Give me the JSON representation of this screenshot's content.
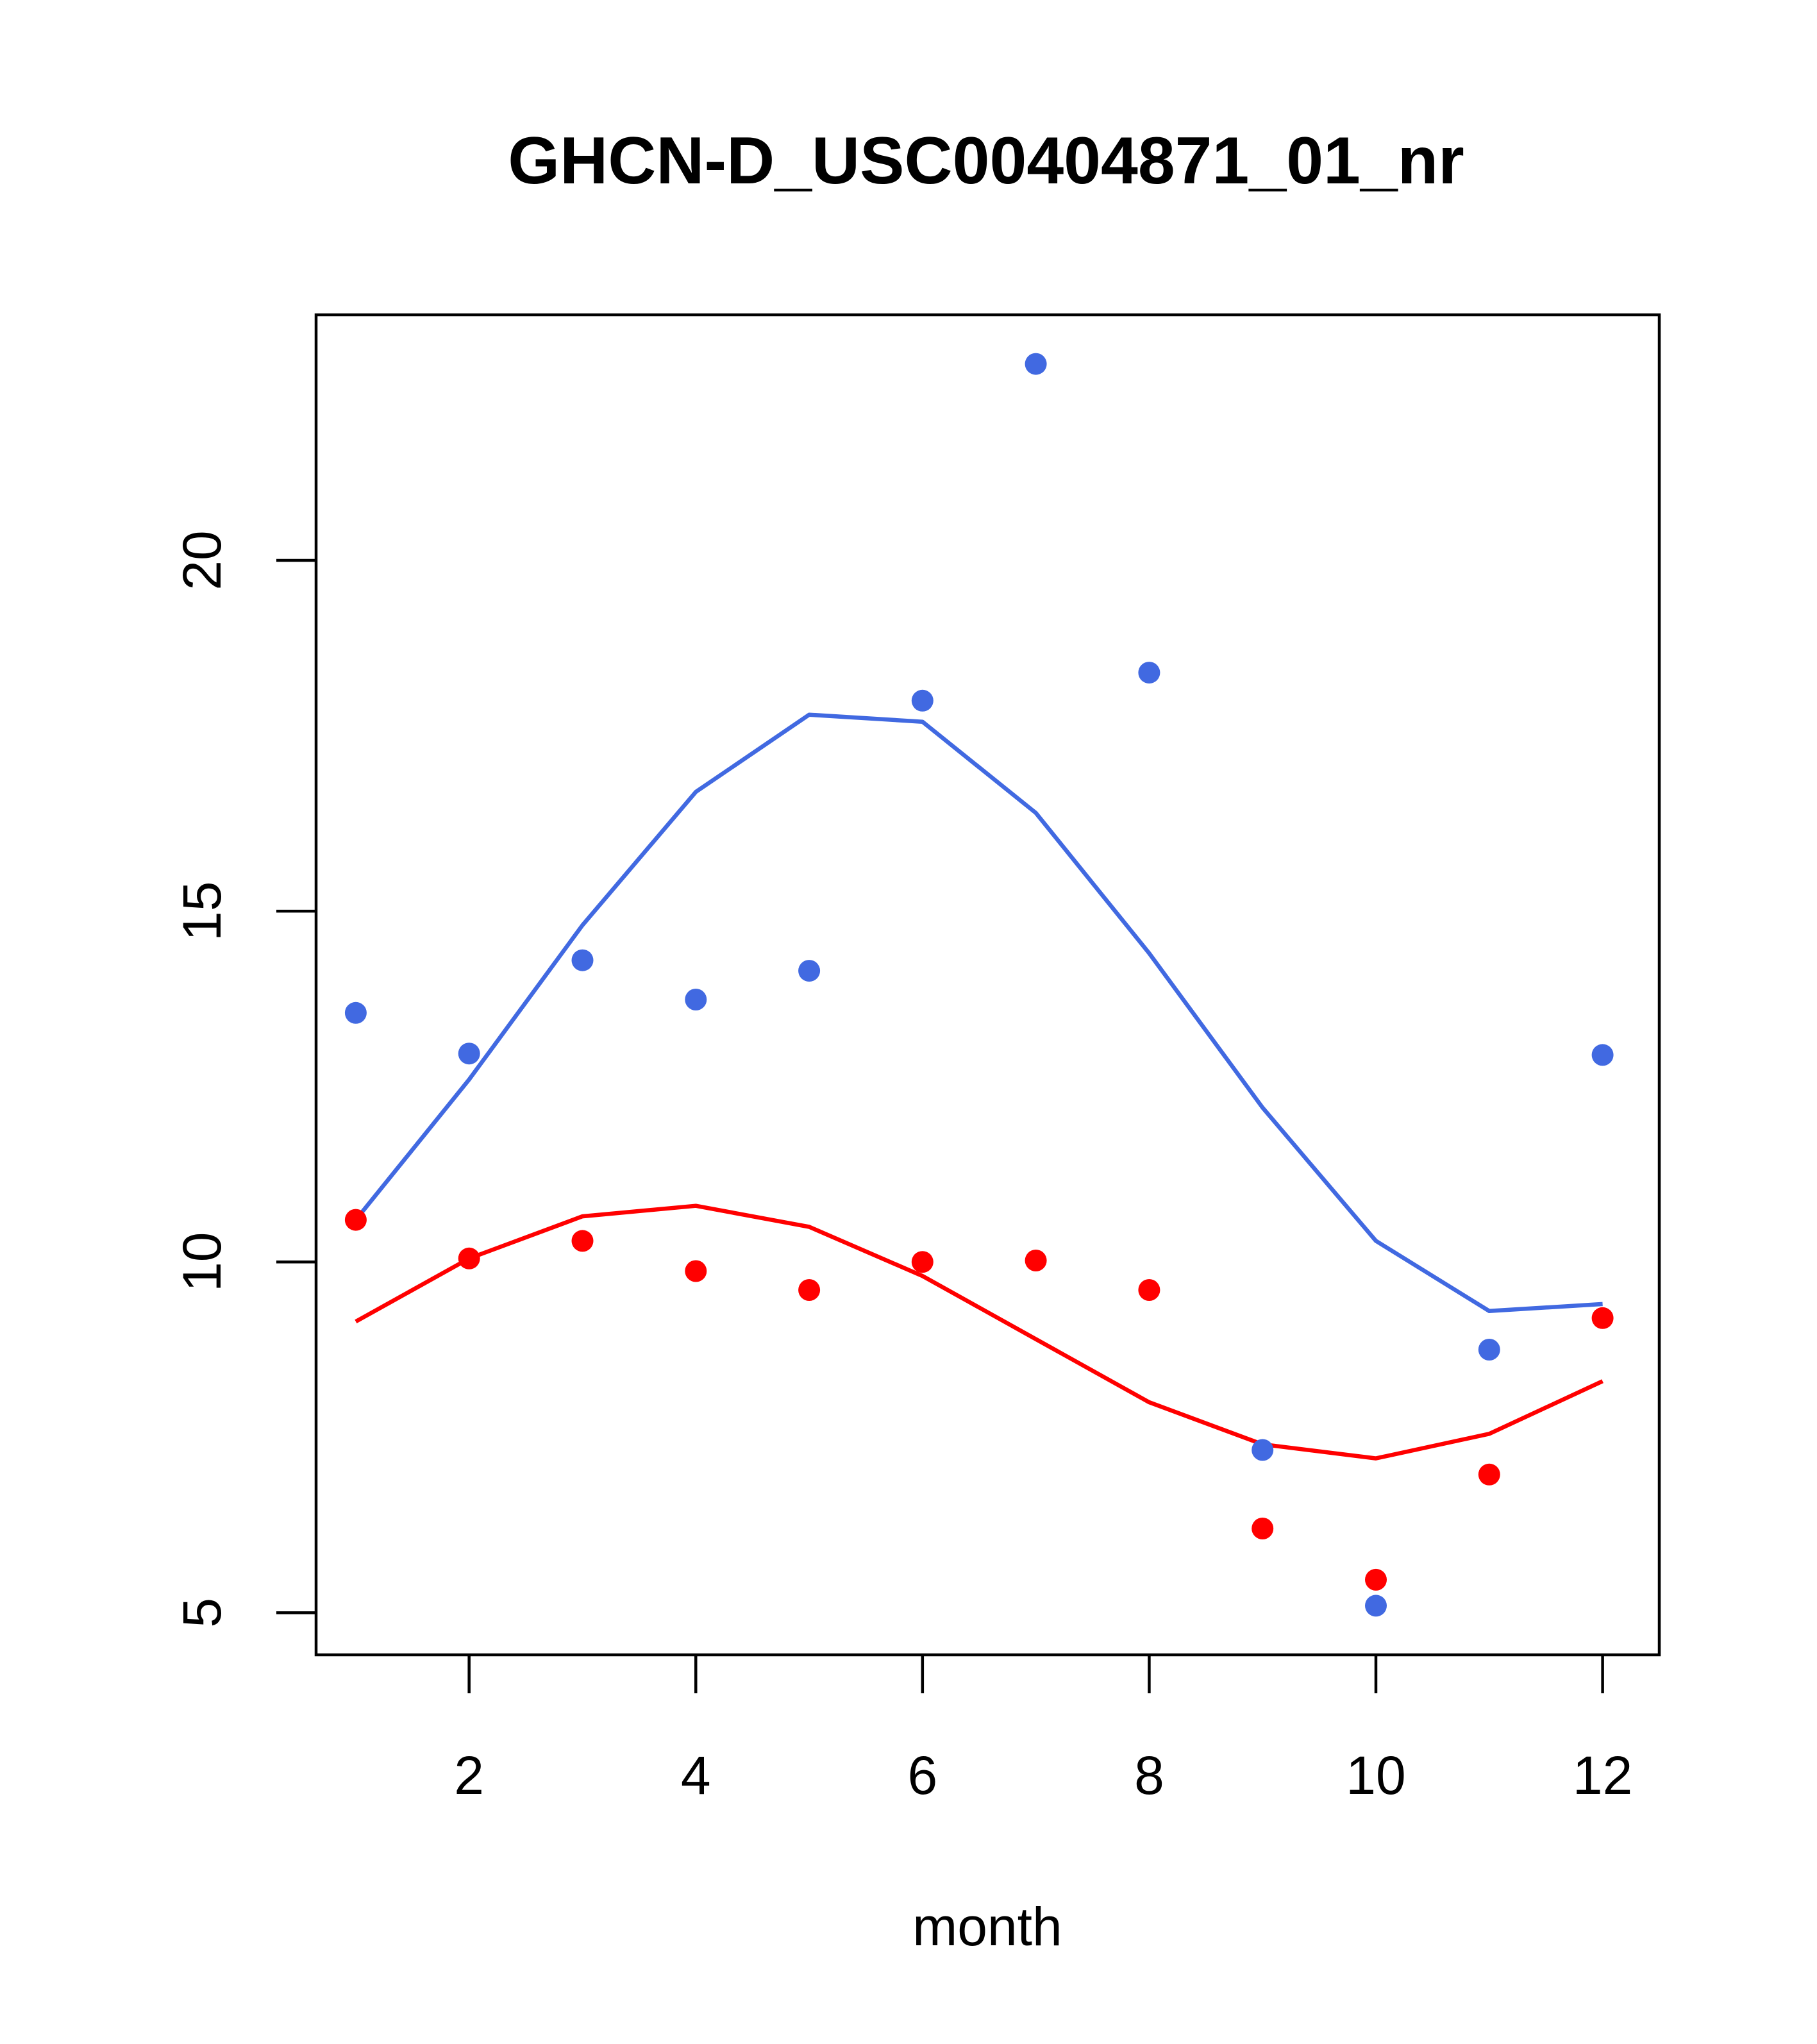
{
  "chart_data": {
    "type": "scatter",
    "title": "GHCN-D_USC00404871_01_nr",
    "xlabel": "month",
    "ylabel": "",
    "xlim": [
      0.65,
      12.5
    ],
    "ylim": [
      4.4,
      23.5
    ],
    "xticks": [
      2,
      4,
      6,
      8,
      10,
      12
    ],
    "yticks": [
      5,
      10,
      15,
      20
    ],
    "grid": false,
    "series": [
      {
        "color": "#4169e1",
        "points": {
          "x": [
            1,
            2,
            3,
            4,
            5,
            6,
            7,
            8,
            9,
            10,
            11,
            12
          ],
          "y": [
            13.55,
            12.97,
            14.3,
            13.74,
            14.15,
            18.0,
            22.8,
            18.4,
            7.32,
            5.1,
            8.75,
            12.95
          ]
        },
        "line": {
          "x": [
            1,
            2,
            3,
            4,
            5,
            6,
            7,
            8,
            9,
            10,
            11,
            12
          ],
          "y": [
            10.6,
            12.6,
            14.8,
            16.7,
            17.8,
            17.7,
            16.4,
            14.4,
            12.2,
            10.3,
            9.3,
            9.4
          ]
        }
      },
      {
        "color": "#ff0000",
        "points": {
          "x": [
            1,
            2,
            3,
            4,
            5,
            6,
            7,
            8,
            9,
            10,
            11,
            12
          ],
          "y": [
            10.6,
            10.05,
            10.3,
            9.87,
            9.6,
            10.0,
            10.02,
            9.6,
            6.2,
            5.47,
            6.97,
            9.2
          ]
        },
        "line": {
          "x": [
            1,
            2,
            3,
            4,
            5,
            6,
            7,
            8,
            9,
            10,
            11,
            12
          ],
          "y": [
            9.15,
            10.05,
            10.65,
            10.8,
            10.5,
            9.8,
            8.9,
            8.0,
            7.4,
            7.2,
            7.55,
            8.3
          ]
        }
      }
    ]
  }
}
